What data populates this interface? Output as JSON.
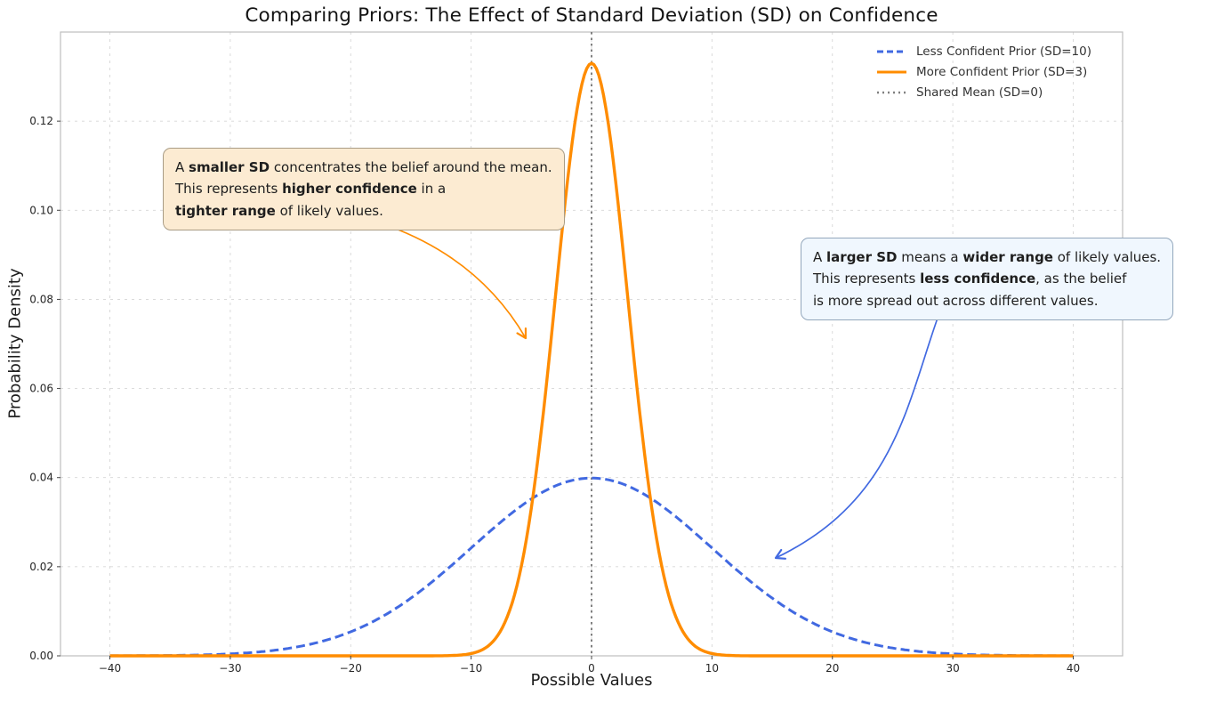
{
  "figure": {
    "title": "Comparing Priors: The Effect of Standard Deviation (SD) on Confidence"
  },
  "chart_data": {
    "type": "line",
    "title": "Comparing Priors: The Effect of Standard Deviation (SD) on Confidence",
    "xlabel": "Possible Values",
    "ylabel": "Probability Density",
    "xlim": [
      -44.1,
      44.1
    ],
    "ylim": [
      0,
      0.14
    ],
    "x_ticks": [
      -40,
      -30,
      -20,
      -10,
      0,
      10,
      20,
      30,
      40
    ],
    "y_ticks": [
      0,
      0.02,
      0.04,
      0.06,
      0.08,
      0.1,
      0.12
    ],
    "grid": true,
    "legend_position": "upper right",
    "series": [
      {
        "name": "Less Confident Prior (SD=10)",
        "distribution": "normal-pdf",
        "mean": 0,
        "sd": 10,
        "x_range": [
          -40,
          40
        ],
        "peak_density": 0.0399,
        "color": "#4169E1",
        "line_style": "dashed",
        "sample_points": {
          "x": [
            -40,
            -30,
            -20,
            -10,
            -5,
            0,
            5,
            10,
            20,
            30,
            40
          ],
          "y": [
            1.34e-05,
            0.000443,
            0.0054,
            0.0242,
            0.0352,
            0.0399,
            0.0352,
            0.0242,
            0.0054,
            0.000443,
            1.34e-05
          ]
        }
      },
      {
        "name": "More Confident Prior (SD=3)",
        "distribution": "normal-pdf",
        "mean": 0,
        "sd": 3,
        "x_range": [
          -40,
          40
        ],
        "peak_density": 0.133,
        "color": "#FF8C00",
        "line_style": "solid",
        "sample_points": {
          "x": [
            -10,
            -6,
            -3,
            0,
            3,
            6,
            10
          ],
          "y": [
            0.00051,
            0.018,
            0.0807,
            0.133,
            0.0807,
            0.018,
            0.00051
          ]
        }
      }
    ],
    "reference_line": {
      "name": "Shared Mean (SD=0)",
      "x": 0,
      "color": "#808080",
      "line_style": "dotted"
    }
  },
  "legend": {
    "items": [
      {
        "label": "Less Confident Prior (SD=10)",
        "color": "#4169E1",
        "style": "dashed"
      },
      {
        "label": "More Confident Prior (SD=3)",
        "color": "#FF8C00",
        "style": "solid"
      },
      {
        "label": "Shared Mean (SD=0)",
        "color": "#808080",
        "style": "dotted"
      }
    ]
  },
  "annotations": [
    {
      "id": "smaller-sd",
      "bg_color": "#FCEBD2",
      "border_color": "#A99C85",
      "arrow_color": "#FF8C00",
      "lines": [
        [
          {
            "text": "A ",
            "bold": false
          },
          {
            "text": "smaller SD",
            "bold": true
          },
          {
            "text": " concentrates the belief around the mean.",
            "bold": false
          }
        ],
        [
          {
            "text": "This represents ",
            "bold": false
          },
          {
            "text": "higher confidence",
            "bold": true
          },
          {
            "text": " in a",
            "bold": false
          }
        ],
        [
          {
            "text": "tighter range",
            "bold": true
          },
          {
            "text": " of likely values.",
            "bold": false
          }
        ]
      ]
    },
    {
      "id": "larger-sd",
      "bg_color": "#F0F7FE",
      "border_color": "#93A7BC",
      "arrow_color": "#4169E1",
      "lines": [
        [
          {
            "text": "A ",
            "bold": false
          },
          {
            "text": "larger SD",
            "bold": true
          },
          {
            "text": " means a ",
            "bold": false
          },
          {
            "text": "wider range",
            "bold": true
          },
          {
            "text": " of likely values.",
            "bold": false
          }
        ],
        [
          {
            "text": "This represents ",
            "bold": false
          },
          {
            "text": "less confidence",
            "bold": true
          },
          {
            "text": ", as the belief",
            "bold": false
          }
        ],
        [
          {
            "text": "is more spread out across different values.",
            "bold": false
          }
        ]
      ]
    }
  ]
}
